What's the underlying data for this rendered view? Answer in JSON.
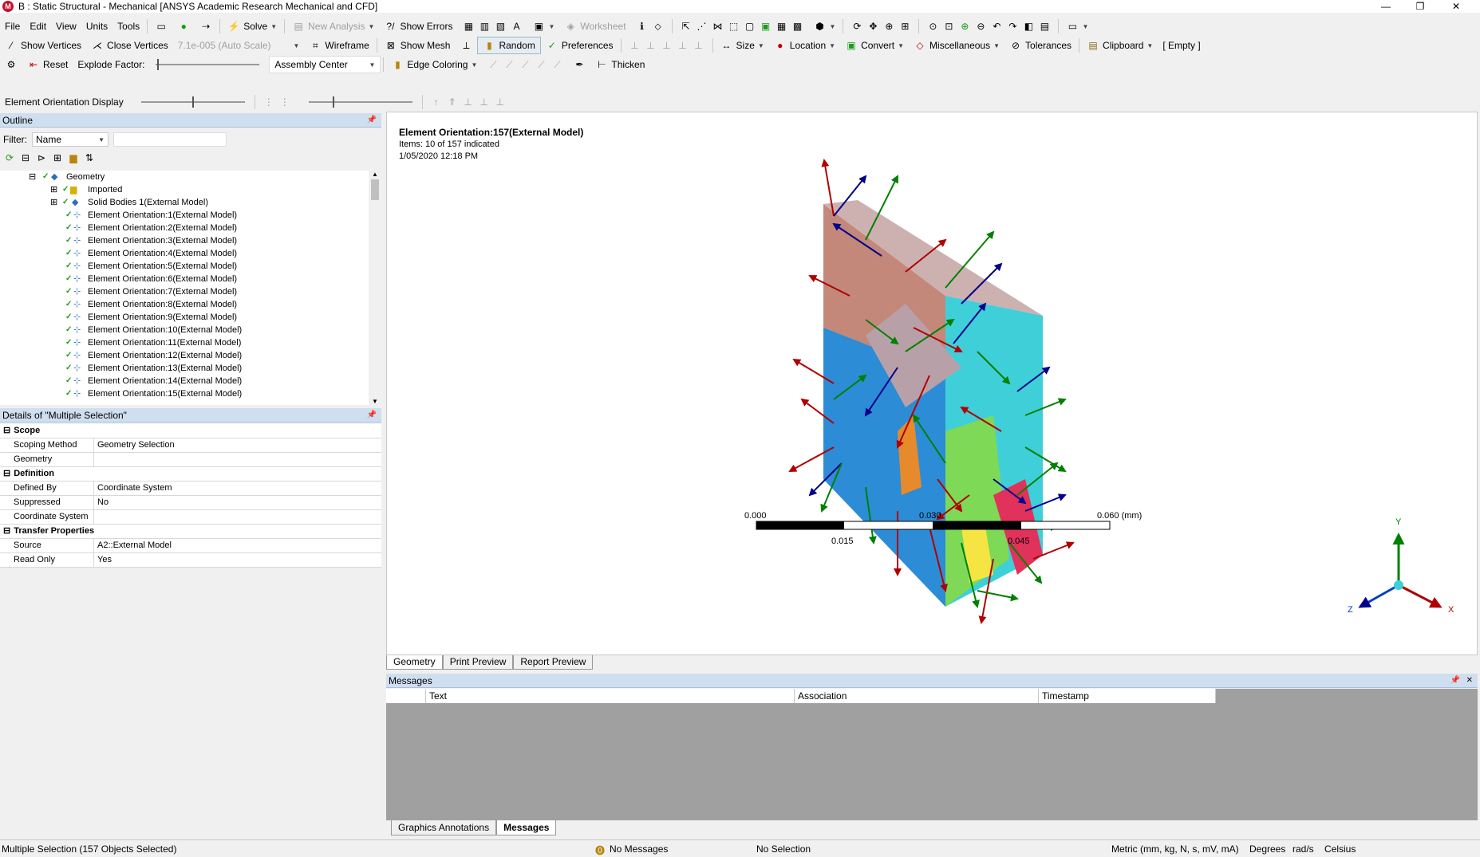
{
  "window": {
    "title": "B : Static Structural - Mechanical [ANSYS Academic Research Mechanical and CFD]",
    "app_icon": "M"
  },
  "menu": [
    "File",
    "Edit",
    "View",
    "Units",
    "Tools"
  ],
  "toolbar1": {
    "solve": "Solve",
    "new_analysis": "New Analysis",
    "show_errors": "Show Errors",
    "worksheet": "Worksheet"
  },
  "toolbar2": {
    "show_vertices": "Show Vertices",
    "close_vertices": "Close Vertices",
    "scale": "7.1e-005 (Auto Scale)",
    "wireframe": "Wireframe",
    "show_mesh": "Show Mesh",
    "random": "Random",
    "preferences": "Preferences",
    "size": "Size",
    "location": "Location",
    "convert": "Convert",
    "miscellaneous": "Miscellaneous",
    "tolerances": "Tolerances",
    "clipboard": "Clipboard",
    "clipboard_state": "[ Empty ]"
  },
  "toolbar3": {
    "reset": "Reset",
    "explode_factor": "Explode Factor:",
    "assembly_center": "Assembly Center",
    "edge_coloring": "Edge Coloring",
    "thicken": "Thicken"
  },
  "toolbar4": {
    "label": "Element Orientation Display"
  },
  "outline": {
    "title": "Outline",
    "filter_label": "Filter:",
    "filter_value": "Name",
    "root": "Geometry",
    "imported": "Imported",
    "solid_bodies": "Solid Bodies 1(External Model)",
    "items": [
      "Element Orientation:1(External Model)",
      "Element Orientation:2(External Model)",
      "Element Orientation:3(External Model)",
      "Element Orientation:4(External Model)",
      "Element Orientation:5(External Model)",
      "Element Orientation:6(External Model)",
      "Element Orientation:7(External Model)",
      "Element Orientation:8(External Model)",
      "Element Orientation:9(External Model)",
      "Element Orientation:10(External Model)",
      "Element Orientation:11(External Model)",
      "Element Orientation:12(External Model)",
      "Element Orientation:13(External Model)",
      "Element Orientation:14(External Model)",
      "Element Orientation:15(External Model)"
    ]
  },
  "details": {
    "title": "Details of \"Multiple Selection\"",
    "groups": [
      {
        "name": "Scope",
        "rows": [
          [
            "Scoping Method",
            "Geometry Selection"
          ],
          [
            "Geometry",
            ""
          ]
        ]
      },
      {
        "name": "Definition",
        "rows": [
          [
            "Defined By",
            "Coordinate System"
          ],
          [
            "Suppressed",
            "No"
          ],
          [
            "Coordinate System",
            ""
          ]
        ]
      },
      {
        "name": "Transfer Properties",
        "rows": [
          [
            "Source",
            "A2::External Model"
          ],
          [
            "Read Only",
            "Yes"
          ]
        ]
      }
    ]
  },
  "viewport": {
    "heading": "Element Orientation:157(External Model)",
    "items": "Items: 10 of 157 indicated",
    "date": "1/05/2020 12:18 PM",
    "scale_labels": {
      "a": "0.000",
      "b": "0.030",
      "c": "0.060 (mm)",
      "d": "0.015",
      "e": "0.045"
    },
    "triad": {
      "x": "X",
      "y": "Y",
      "z": "Z"
    },
    "colors": {
      "x": "#c00000",
      "y": "#008000",
      "z": "#00008b"
    }
  },
  "view_tabs": [
    "Geometry",
    "Print Preview",
    "Report Preview"
  ],
  "messages": {
    "title": "Messages",
    "cols": [
      "Text",
      "Association",
      "Timestamp"
    ]
  },
  "bottom_tabs": [
    "Graphics Annotations",
    "Messages"
  ],
  "status": {
    "selection": "Multiple Selection (157 Objects Selected)",
    "messages": "No Messages",
    "no_selection": "No Selection",
    "units": "Metric (mm, kg, N, s, mV, mA)",
    "degrees": "Degrees",
    "rads": "rad/s",
    "celsius": "Celsius"
  }
}
